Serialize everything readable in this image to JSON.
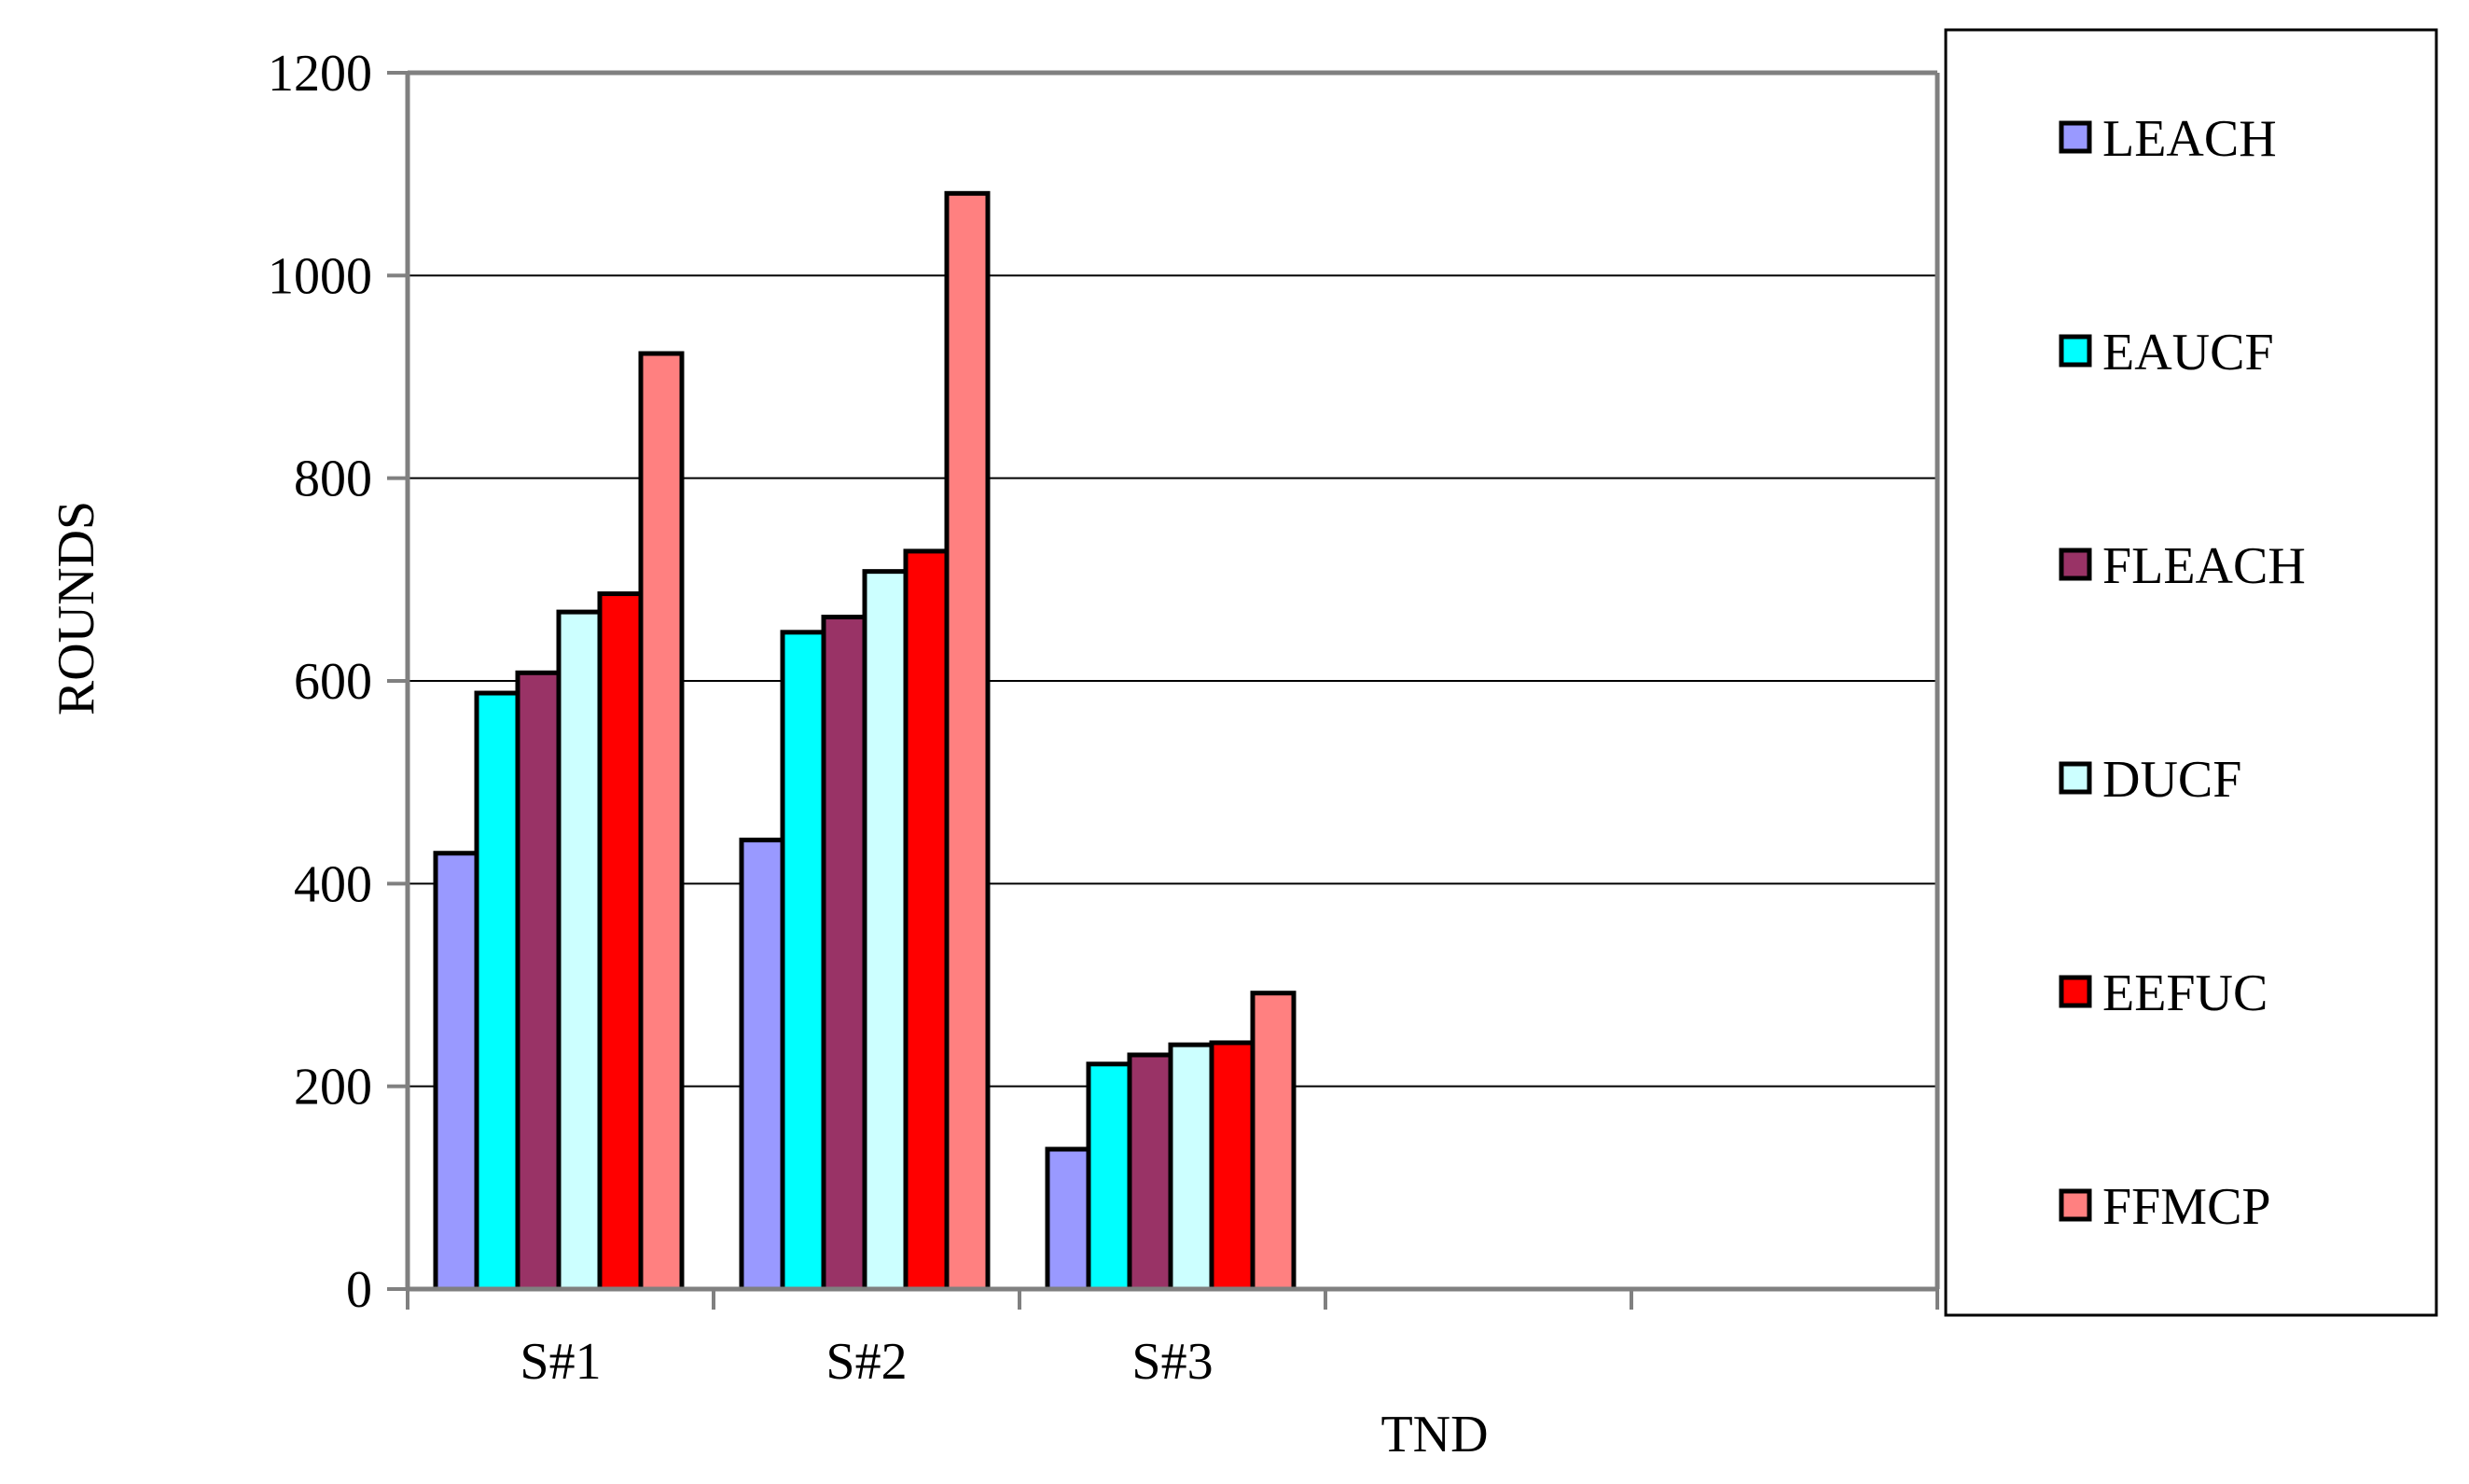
{
  "chart_data": {
    "type": "bar",
    "title": "",
    "xlabel": "TND",
    "ylabel": "ROUNDS",
    "categories": [
      "S#1",
      "S#2",
      "S#3",
      "",
      ""
    ],
    "ylim": [
      0,
      1200
    ],
    "yticks": [
      0,
      200,
      400,
      600,
      800,
      1000,
      1200
    ],
    "grid": true,
    "legend_position": "right",
    "series": [
      {
        "name": "LEACH",
        "color": "#9999ff",
        "values": [
          430,
          443,
          138,
          null,
          null
        ]
      },
      {
        "name": "EAUCF",
        "color": "#00ffff",
        "values": [
          588,
          648,
          222,
          null,
          null
        ]
      },
      {
        "name": "FLEACH",
        "color": "#993366",
        "values": [
          608,
          663,
          231,
          null,
          null
        ]
      },
      {
        "name": "DUCF",
        "color": "#ccffff",
        "values": [
          668,
          708,
          241,
          null,
          null
        ]
      },
      {
        "name": "EEFUC",
        "color": "#ff0000",
        "values": [
          686,
          728,
          243,
          null,
          null
        ]
      },
      {
        "name": "FFMCP",
        "color": "#ff8080",
        "values": [
          923,
          1081,
          292,
          null,
          null
        ]
      }
    ]
  }
}
